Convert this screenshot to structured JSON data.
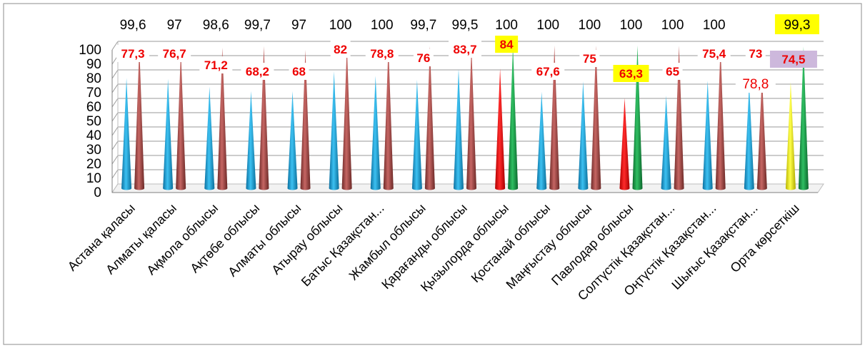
{
  "chart_data": {
    "type": "bar",
    "subtype": "3d-cone",
    "title": "",
    "xlabel": "",
    "ylabel": "",
    "ylim": [
      0,
      100
    ],
    "yticks": [
      0,
      10,
      20,
      30,
      40,
      50,
      60,
      70,
      80,
      90,
      100
    ],
    "grid": true,
    "legend": "none",
    "categories": [
      "Астана қаласы",
      "Алматы қаласы",
      "Ақмола облысы",
      "Ақтөбе облысы",
      "Алматы облысы",
      "Атырау облысы",
      "Батыс Қазақстан...",
      "Жамбыл облысы",
      "Қарағанды облысы",
      "Қызылорда облысы",
      "Қостанай облысы",
      "Маңғыстау облысы",
      "Павлодар облысы",
      "Солтүстік Қазақстан...",
      "Оңтүстік Қазақстан...",
      "Шығыс Қазақстан...",
      "Орта көрсеткіш"
    ],
    "series": [
      {
        "color": "#1aa3dc",
        "values": [
          77.3,
          76.7,
          71.2,
          68.2,
          68,
          82,
          78.8,
          76,
          83.7,
          84,
          67.6,
          75,
          63.3,
          65,
          75.4,
          73,
          74.5
        ],
        "labels": [
          "77,3",
          "76,7",
          "71,2",
          "68,2",
          "68",
          "82",
          "78,8",
          "76",
          "83,7",
          "84",
          "67,6",
          "75",
          "63,3",
          "65",
          "75,4",
          "73",
          "74,5"
        ]
      },
      {
        "color": "#a94a48",
        "values": [
          99.6,
          97,
          98.6,
          99.7,
          97,
          100,
          100,
          99.7,
          99.5,
          100,
          100,
          100,
          100,
          100,
          100,
          78.8,
          99.3
        ],
        "labels": [
          "99,6",
          "97",
          "98,6",
          "99,7",
          "97",
          "100",
          "100",
          "99,7",
          "99,5",
          "100",
          "100",
          "100",
          "100",
          "100",
          "100",
          "78,8",
          "99,3"
        ]
      }
    ],
    "point_colors": {
      "series1": {
        "12": "#ee1111",
        "16": "#f2ee1c"
      },
      "series2": {
        "9": "#ee1111",
        "12": "#ee1111",
        "16": "#f2ee1c"
      }
    },
    "highlight_fills": {
      "yellow": "#ffff00",
      "lavender": "#cdb8dc"
    },
    "green_color": "#1f9e4c"
  }
}
